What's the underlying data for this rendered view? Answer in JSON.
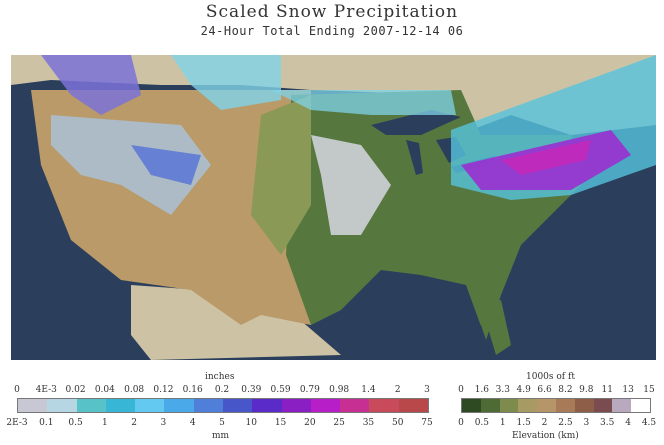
{
  "title": "Scaled Snow Precipitation",
  "subtitle": "24-Hour Total Ending 2007-12-14 06",
  "precip_legend": {
    "label_top": "inches",
    "label_bottom": "mm",
    "inches": [
      "0",
      "4E-3",
      "0.02",
      "0.04",
      "0.08",
      "0.12",
      "0.16",
      "0.2",
      "0.39",
      "0.59",
      "0.79",
      "0.98",
      "1.4",
      "2",
      "3"
    ],
    "mm": [
      "2E-3",
      "0.1",
      "0.5",
      "1",
      "2",
      "3",
      "4",
      "5",
      "10",
      "15",
      "20",
      "25",
      "35",
      "50",
      "75"
    ],
    "colors": [
      "#c8c8d4",
      "#b7d6e4",
      "#57c2c7",
      "#38b6d5",
      "#63c9f0",
      "#4aa9e8",
      "#4f7fd8",
      "#4756c9",
      "#5a2bc8",
      "#8a1fc3",
      "#b81ec7",
      "#c72f93",
      "#c94a5b",
      "#b8484a"
    ]
  },
  "elev_legend": {
    "label_top": "1000s of ft",
    "label_bottom": "Elevation (km)",
    "ft": [
      "0",
      "1.6",
      "3.3",
      "4.9",
      "6.6",
      "8.2",
      "9.8",
      "11",
      "13",
      "15"
    ],
    "km": [
      "0",
      "0.5",
      "1",
      "1.5",
      "2",
      "2.5",
      "3",
      "3.5",
      "4",
      "4.5"
    ],
    "colors": [
      "#2e4a23",
      "#4f6b35",
      "#7d8b4d",
      "#a89a63",
      "#b69668",
      "#a77b57",
      "#8f5e48",
      "#7a4c4f",
      "#b9a9bf",
      "#ffffff"
    ]
  }
}
